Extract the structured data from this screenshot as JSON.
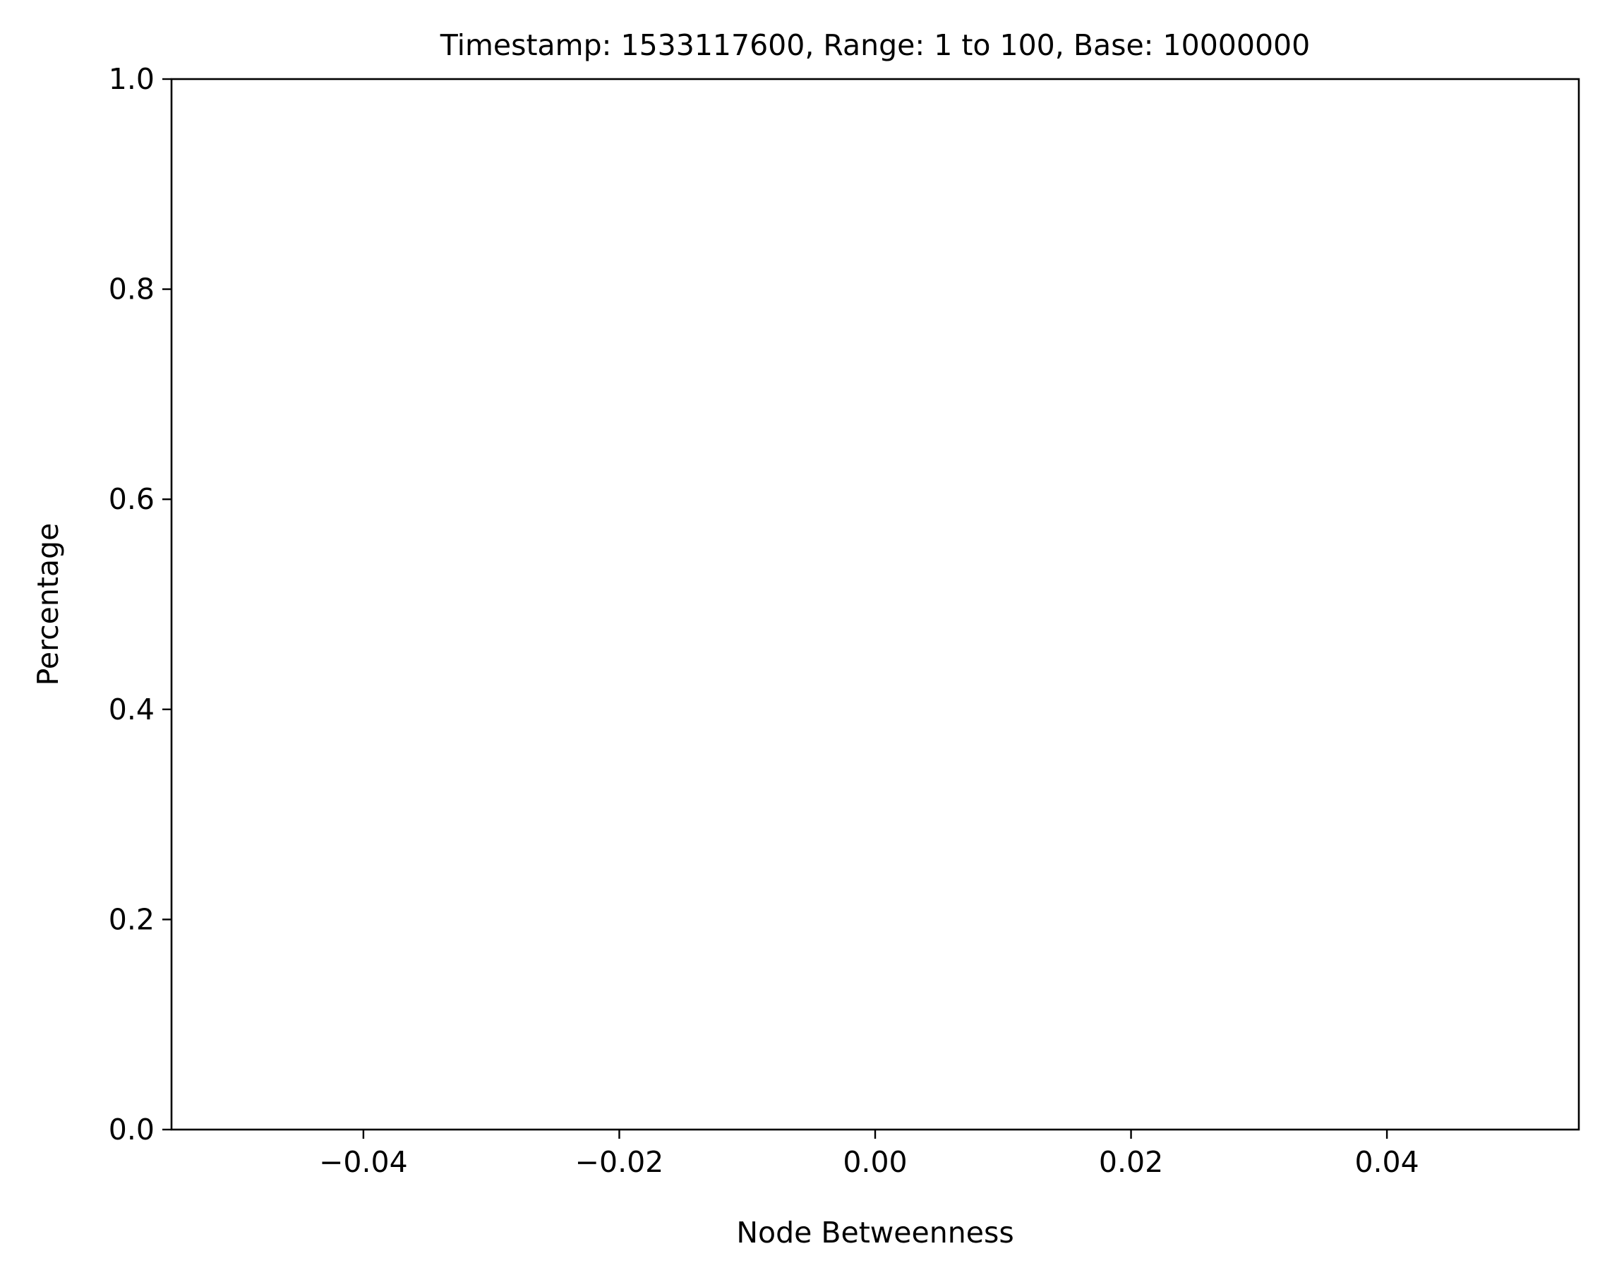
{
  "chart_data": {
    "type": "line",
    "title": "Timestamp: 1533117600, Range: 1 to 100, Base: 10000000",
    "xlabel": "Node Betweenness",
    "ylabel": "Percentage",
    "xlim": [
      -0.055,
      0.055
    ],
    "ylim": [
      0.0,
      1.0
    ],
    "x_ticks": [
      -0.04,
      -0.02,
      0.0,
      0.02,
      0.04
    ],
    "x_tick_labels": [
      "−0.04",
      "−0.02",
      "0.00",
      "0.02",
      "0.04"
    ],
    "y_ticks": [
      0.0,
      0.2,
      0.4,
      0.6,
      0.8,
      1.0
    ],
    "y_tick_labels": [
      "0.0",
      "0.2",
      "0.4",
      "0.6",
      "0.8",
      "1.0"
    ],
    "series": [],
    "grid": false,
    "legend": "none"
  }
}
